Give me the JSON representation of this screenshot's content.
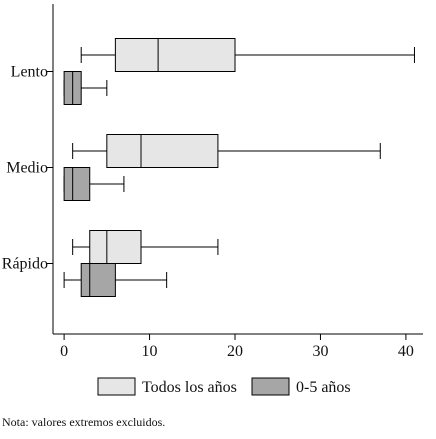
{
  "chart_data": {
    "type": "boxplot",
    "orientation": "horizontal",
    "categories": [
      "Lento",
      "Medio",
      "Rápido"
    ],
    "series": [
      {
        "name": "Todos los años",
        "color": "#e6e6e6",
        "boxes": [
          {
            "category": "Lento",
            "whisker_low": 2,
            "q1": 6,
            "median": 11,
            "q3": 20,
            "whisker_high": 41
          },
          {
            "category": "Medio",
            "whisker_low": 1,
            "q1": 5,
            "median": 9,
            "q3": 18,
            "whisker_high": 37
          },
          {
            "category": "Rápido",
            "whisker_low": 1,
            "q1": 3,
            "median": 5,
            "q3": 9,
            "whisker_high": 18
          }
        ]
      },
      {
        "name": "0-5 años",
        "color": "#a6a6a6",
        "boxes": [
          {
            "category": "Lento",
            "whisker_low": 0,
            "q1": 0,
            "median": 1,
            "q3": 2,
            "whisker_high": 5
          },
          {
            "category": "Medio",
            "whisker_low": 0,
            "q1": 0,
            "median": 1,
            "q3": 3,
            "whisker_high": 7
          },
          {
            "category": "Rápido",
            "whisker_low": 0,
            "q1": 2,
            "median": 3,
            "q3": 6,
            "whisker_high": 12
          }
        ]
      }
    ],
    "x_ticks": [
      0,
      10,
      20,
      30,
      40
    ],
    "xlim": [
      -1.3,
      42
    ],
    "xlabel": "",
    "ylabel": "",
    "title": "",
    "grid": false,
    "legend_position": "bottom",
    "note": "Nota: valores extremos excluidos."
  }
}
